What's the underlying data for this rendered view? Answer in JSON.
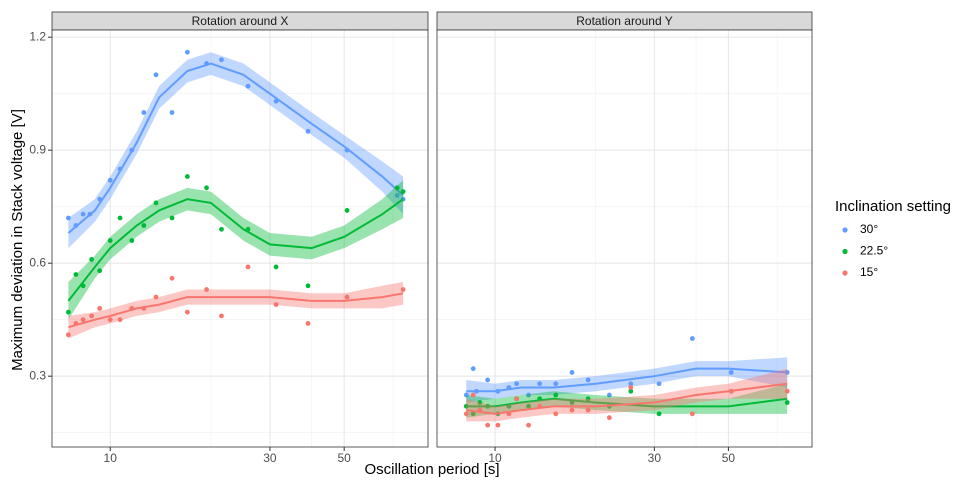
{
  "chart_data": {
    "type": "scatter",
    "xlabel": "Oscillation period [s]",
    "ylabel": "Maximum deviation in Stack voltage [V]",
    "legend_title": "Inclination setting",
    "legend": "right",
    "log_x": true,
    "grid": true,
    "xlim": [
      6.7,
      89
    ],
    "xticks": [
      10,
      30,
      50
    ],
    "minor_xticks": [
      20,
      40,
      70
    ],
    "ylim": [
      0.112,
      1.219
    ],
    "yticks": [
      0.3,
      0.6,
      0.9,
      1.2
    ],
    "minor_yticks": [
      0.15,
      0.45,
      0.75,
      1.05
    ],
    "series": [
      {
        "name": "30°",
        "color": "#619CFF"
      },
      {
        "name": "22.5°",
        "color": "#00BA38"
      },
      {
        "name": "15°",
        "color": "#F8766D"
      }
    ],
    "facets": [
      {
        "title": "Rotation around X",
        "series": [
          {
            "x": [
              7.5,
              7.9,
              8.3,
              8.7,
              9.3,
              10,
              10.7,
              11.6,
              12.6,
              13.7,
              15.3,
              17,
              19.4,
              21.5,
              25.8,
              31.3,
              39,
              51,
              72,
              75
            ],
            "values": [
              0.72,
              0.7,
              0.73,
              0.73,
              0.77,
              0.82,
              0.85,
              0.9,
              1.0,
              1.1,
              1.0,
              1.16,
              1.13,
              1.14,
              1.07,
              1.03,
              0.95,
              0.9,
              0.78,
              0.77
            ],
            "fit_x": [
              7.5,
              9,
              10,
              12,
              14,
              17,
              20,
              25,
              30,
              40,
              50,
              65,
              75
            ],
            "fit": [
              0.68,
              0.74,
              0.8,
              0.92,
              1.04,
              1.11,
              1.13,
              1.1,
              1.05,
              0.97,
              0.91,
              0.83,
              0.78
            ],
            "fit_low": [
              0.64,
              0.71,
              0.77,
              0.89,
              1.01,
              1.08,
              1.1,
              1.07,
              1.02,
              0.94,
              0.88,
              0.79,
              0.73
            ],
            "fit_high": [
              0.72,
              0.77,
              0.83,
              0.95,
              1.07,
              1.14,
              1.16,
              1.13,
              1.08,
              1.0,
              0.94,
              0.87,
              0.83
            ]
          },
          {
            "x": [
              7.5,
              7.9,
              8.3,
              8.8,
              9.3,
              10,
              10.7,
              11.6,
              12.6,
              13.7,
              15.3,
              17,
              19.4,
              21.5,
              25.8,
              31.3,
              39,
              51,
              72,
              75
            ],
            "values": [
              0.47,
              0.57,
              0.54,
              0.61,
              0.58,
              0.66,
              0.72,
              0.66,
              0.7,
              0.76,
              0.72,
              0.83,
              0.8,
              0.69,
              0.69,
              0.59,
              0.54,
              0.74,
              0.8,
              0.79
            ],
            "fit_x": [
              7.5,
              9,
              10,
              12,
              14,
              17,
              20,
              25,
              30,
              40,
              50,
              65,
              75
            ],
            "fit": [
              0.5,
              0.59,
              0.64,
              0.7,
              0.74,
              0.77,
              0.76,
              0.69,
              0.65,
              0.64,
              0.67,
              0.73,
              0.77
            ],
            "fit_low": [
              0.45,
              0.56,
              0.61,
              0.67,
              0.71,
              0.74,
              0.73,
              0.66,
              0.62,
              0.61,
              0.64,
              0.69,
              0.72
            ],
            "fit_high": [
              0.55,
              0.62,
              0.67,
              0.73,
              0.77,
              0.8,
              0.79,
              0.72,
              0.68,
              0.67,
              0.7,
              0.77,
              0.82
            ]
          },
          {
            "x": [
              7.5,
              7.9,
              8.3,
              8.8,
              9.3,
              10,
              10.7,
              11.6,
              12.6,
              13.7,
              15.3,
              17,
              19.4,
              21.5,
              25.8,
              31.3,
              39,
              51,
              75
            ],
            "values": [
              0.41,
              0.44,
              0.45,
              0.46,
              0.48,
              0.45,
              0.45,
              0.48,
              0.48,
              0.51,
              0.56,
              0.47,
              0.53,
              0.46,
              0.59,
              0.49,
              0.44,
              0.51,
              0.53
            ],
            "fit_x": [
              7.5,
              9,
              10,
              12,
              14,
              17,
              20,
              25,
              30,
              40,
              50,
              65,
              75
            ],
            "fit": [
              0.43,
              0.45,
              0.46,
              0.48,
              0.49,
              0.51,
              0.51,
              0.51,
              0.51,
              0.5,
              0.5,
              0.51,
              0.52
            ],
            "fit_low": [
              0.4,
              0.43,
              0.44,
              0.46,
              0.47,
              0.49,
              0.49,
              0.49,
              0.49,
              0.48,
              0.48,
              0.48,
              0.49
            ],
            "fit_high": [
              0.46,
              0.47,
              0.48,
              0.5,
              0.51,
              0.53,
              0.53,
              0.53,
              0.53,
              0.52,
              0.52,
              0.54,
              0.55
            ]
          }
        ]
      },
      {
        "title": "Rotation around Y",
        "series": [
          {
            "x": [
              8.2,
              8.6,
              8.8,
              9.5,
              10.2,
              11,
              11.6,
              12.6,
              13.6,
              15.2,
              17,
              19,
              22,
              25.5,
              31,
              39,
              51,
              75
            ],
            "values": [
              0.25,
              0.32,
              0.26,
              0.29,
              0.26,
              0.27,
              0.28,
              0.25,
              0.28,
              0.28,
              0.31,
              0.29,
              0.25,
              0.28,
              0.28,
              0.4,
              0.31,
              0.31
            ],
            "fit_x": [
              8.2,
              10,
              12,
              15,
              20,
              30,
              40,
              50,
              75
            ],
            "fit": [
              0.26,
              0.26,
              0.27,
              0.27,
              0.28,
              0.3,
              0.32,
              0.32,
              0.31
            ],
            "fit_low": [
              0.23,
              0.24,
              0.25,
              0.25,
              0.26,
              0.28,
              0.3,
              0.3,
              0.27
            ],
            "fit_high": [
              0.29,
              0.28,
              0.29,
              0.29,
              0.3,
              0.32,
              0.34,
              0.34,
              0.35
            ]
          },
          {
            "x": [
              8.2,
              8.6,
              9,
              9.5,
              10.2,
              11,
              11.6,
              12.6,
              13.6,
              15.2,
              17,
              19,
              22,
              25.5,
              31,
              51,
              75
            ],
            "values": [
              0.22,
              0.2,
              0.23,
              0.22,
              0.2,
              0.22,
              0.24,
              0.22,
              0.24,
              0.25,
              0.23,
              0.24,
              0.22,
              0.26,
              0.2,
              0.26,
              0.23
            ],
            "fit_x": [
              8.2,
              10,
              12,
              15,
              20,
              30,
              40,
              50,
              75
            ],
            "fit": [
              0.22,
              0.22,
              0.23,
              0.24,
              0.23,
              0.22,
              0.22,
              0.22,
              0.24
            ],
            "fit_low": [
              0.19,
              0.2,
              0.21,
              0.22,
              0.21,
              0.2,
              0.2,
              0.2,
              0.2
            ],
            "fit_high": [
              0.25,
              0.24,
              0.25,
              0.26,
              0.25,
              0.24,
              0.24,
              0.24,
              0.28
            ]
          },
          {
            "x": [
              8.2,
              8.6,
              9,
              9.5,
              10.2,
              11,
              11.6,
              12.6,
              13.6,
              15.2,
              17,
              19,
              22,
              25.5,
              39,
              51,
              75
            ],
            "values": [
              0.2,
              0.25,
              0.21,
              0.17,
              0.17,
              0.2,
              0.24,
              0.17,
              0.22,
              0.2,
              0.21,
              0.21,
              0.19,
              0.27,
              0.2,
              0.26,
              0.26
            ],
            "fit_x": [
              8.2,
              10,
              12,
              15,
              20,
              30,
              40,
              50,
              75
            ],
            "fit": [
              0.21,
              0.2,
              0.21,
              0.22,
              0.22,
              0.23,
              0.25,
              0.26,
              0.28
            ],
            "fit_low": [
              0.18,
              0.18,
              0.19,
              0.2,
              0.2,
              0.21,
              0.23,
              0.24,
              0.24
            ],
            "fit_high": [
              0.24,
              0.22,
              0.23,
              0.24,
              0.24,
              0.25,
              0.27,
              0.28,
              0.32
            ]
          }
        ]
      }
    ]
  }
}
